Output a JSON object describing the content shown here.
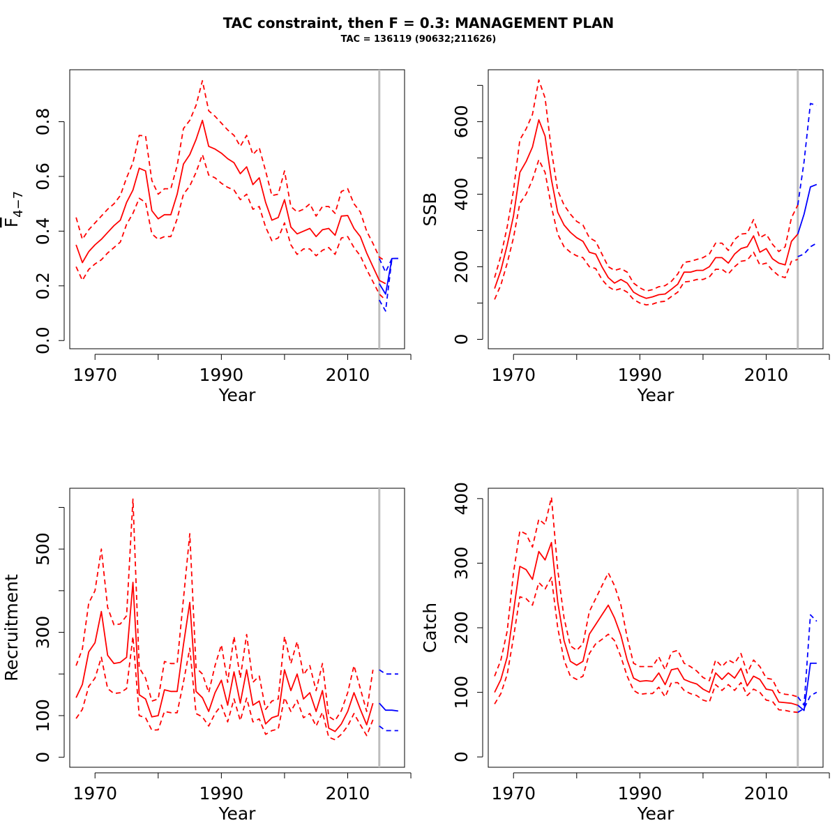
{
  "title": "TAC constraint, then F = 0.3: MANAGEMENT PLAN",
  "subtitle": "TAC = 136119 (90632;211626)",
  "colors": {
    "history": "#ff0000",
    "projection": "#0000ff",
    "divider": "#bebebe"
  },
  "chart_data": [
    {
      "type": "line",
      "ylabel": "F",
      "ylabel_sub": "4−7",
      "ylabel_overline": true,
      "xlabel": "Year",
      "xlim": [
        1966,
        2019
      ],
      "ylim": [
        -0.03,
        0.99
      ],
      "x_ticks": [
        1970,
        1990,
        2010
      ],
      "x_minor_ticks": [
        1980,
        2000,
        2020
      ],
      "y_ticks": [
        0.0,
        0.2,
        0.4,
        0.6,
        0.8
      ],
      "y_tick_labels": [
        "0.0",
        "0.2",
        "0.4",
        "0.6",
        "0.8"
      ],
      "y_minor_ticks": [],
      "divider_year": 2015,
      "series": [
        {
          "role": "historical-estimate",
          "x_start": 1967,
          "values": [
            0.35,
            0.285,
            0.325,
            0.35,
            0.37,
            0.395,
            0.42,
            0.44,
            0.505,
            0.55,
            0.63,
            0.62,
            0.475,
            0.445,
            0.46,
            0.46,
            0.535,
            0.645,
            0.68,
            0.735,
            0.805,
            0.71,
            0.7,
            0.685,
            0.665,
            0.65,
            0.61,
            0.635,
            0.57,
            0.595,
            0.505,
            0.44,
            0.45,
            0.515,
            0.415,
            0.39,
            0.4,
            0.41,
            0.38,
            0.405,
            0.41,
            0.385,
            0.455,
            0.457,
            0.41,
            0.38,
            0.32,
            0.27,
            0.22,
            0.208
          ]
        },
        {
          "role": "historical-upper",
          "x_start": 1967,
          "values": [
            0.45,
            0.37,
            0.405,
            0.43,
            0.455,
            0.48,
            0.5,
            0.53,
            0.595,
            0.65,
            0.75,
            0.748,
            0.585,
            0.535,
            0.555,
            0.555,
            0.64,
            0.775,
            0.805,
            0.86,
            0.95,
            0.84,
            0.82,
            0.795,
            0.77,
            0.75,
            0.71,
            0.75,
            0.68,
            0.705,
            0.62,
            0.53,
            0.535,
            0.62,
            0.49,
            0.47,
            0.48,
            0.5,
            0.455,
            0.49,
            0.49,
            0.465,
            0.545,
            0.555,
            0.5,
            0.47,
            0.4,
            0.355,
            0.305,
            0.29
          ]
        },
        {
          "role": "historical-lower",
          "x_start": 1967,
          "values": [
            0.27,
            0.22,
            0.26,
            0.28,
            0.295,
            0.32,
            0.34,
            0.36,
            0.425,
            0.465,
            0.52,
            0.505,
            0.39,
            0.37,
            0.38,
            0.38,
            0.445,
            0.535,
            0.565,
            0.615,
            0.68,
            0.605,
            0.595,
            0.575,
            0.56,
            0.55,
            0.515,
            0.535,
            0.48,
            0.49,
            0.415,
            0.365,
            0.375,
            0.43,
            0.35,
            0.315,
            0.335,
            0.335,
            0.31,
            0.33,
            0.34,
            0.315,
            0.375,
            0.38,
            0.34,
            0.31,
            0.26,
            0.215,
            0.17,
            0.148
          ]
        },
        {
          "role": "projection-estimate",
          "x_start": 2015,
          "values": [
            0.208,
            0.17,
            0.3,
            0.3
          ]
        },
        {
          "role": "projection-upper",
          "x_start": 2015,
          "values": [
            0.3,
            0.25,
            0.3,
            0.3
          ]
        },
        {
          "role": "projection-lower",
          "x_start": 2015,
          "values": [
            0.148,
            0.108,
            0.3,
            0.3
          ]
        }
      ]
    },
    {
      "type": "line",
      "ylabel": "SSB",
      "xlabel": "Year",
      "xlim": [
        1966,
        2019
      ],
      "ylim": [
        -26,
        743
      ],
      "x_ticks": [
        1970,
        1990,
        2010
      ],
      "x_minor_ticks": [
        1980,
        2000,
        2020
      ],
      "y_ticks": [
        0,
        200,
        400,
        600
      ],
      "y_tick_labels": [
        "0",
        "200",
        "400",
        "600"
      ],
      "y_minor_ticks": [
        100,
        300,
        500,
        700
      ],
      "divider_year": 2015,
      "series": [
        {
          "role": "historical-estimate",
          "x_start": 1967,
          "values": [
            140,
            190,
            260,
            340,
            460,
            490,
            530,
            605,
            560,
            440,
            350,
            315,
            295,
            280,
            270,
            240,
            235,
            200,
            170,
            155,
            165,
            155,
            130,
            120,
            113,
            117,
            123,
            125,
            138,
            152,
            185,
            185,
            190,
            190,
            200,
            225,
            225,
            210,
            235,
            250,
            255,
            285,
            240,
            250,
            222,
            210,
            205,
            270,
            290
          ]
        },
        {
          "role": "historical-upper",
          "x_start": 1967,
          "values": [
            170,
            230,
            310,
            410,
            550,
            580,
            620,
            715,
            665,
            520,
            410,
            370,
            345,
            325,
            315,
            280,
            270,
            235,
            200,
            190,
            195,
            185,
            155,
            142,
            133,
            137,
            145,
            148,
            160,
            180,
            212,
            215,
            220,
            225,
            235,
            265,
            265,
            245,
            275,
            290,
            292,
            330,
            280,
            290,
            262,
            242,
            255,
            335,
            370
          ]
        },
        {
          "role": "historical-lower",
          "x_start": 1967,
          "values": [
            110,
            150,
            210,
            280,
            375,
            400,
            440,
            495,
            460,
            365,
            290,
            255,
            240,
            230,
            225,
            200,
            195,
            165,
            145,
            135,
            140,
            130,
            110,
            100,
            95,
            97,
            103,
            105,
            118,
            130,
            158,
            160,
            165,
            165,
            172,
            193,
            193,
            180,
            200,
            215,
            218,
            240,
            205,
            210,
            190,
            175,
            170,
            215,
            220
          ]
        },
        {
          "role": "projection-estimate",
          "x_start": 2015,
          "values": [
            290,
            345,
            420,
            427
          ]
        },
        {
          "role": "projection-upper",
          "x_start": 2015,
          "values": [
            370,
            490,
            650,
            645
          ]
        },
        {
          "role": "projection-lower",
          "x_start": 2015,
          "values": [
            228,
            235,
            255,
            265
          ]
        }
      ]
    },
    {
      "type": "line",
      "ylabel": "Recruitment",
      "xlabel": "Year",
      "xlim": [
        1966,
        2019
      ],
      "ylim": [
        -24,
        646
      ],
      "x_ticks": [
        1970,
        1990,
        2010
      ],
      "x_minor_ticks": [
        1980,
        2000,
        2020
      ],
      "y_ticks": [
        0,
        100,
        300,
        500
      ],
      "y_tick_labels": [
        "0",
        "100",
        "300",
        "500"
      ],
      "y_minor_ticks": [
        200,
        400,
        600
      ],
      "divider_year": 2015,
      "series": [
        {
          "role": "historical-estimate",
          "x_start": 1967,
          "values": [
            143,
            175,
            253,
            275,
            350,
            245,
            225,
            228,
            240,
            420,
            150,
            140,
            97,
            100,
            162,
            158,
            158,
            270,
            372,
            158,
            143,
            110,
            155,
            185,
            125,
            205,
            130,
            210,
            125,
            135,
            80,
            95,
            100,
            210,
            160,
            200,
            140,
            155,
            110,
            160,
            70,
            62,
            80,
            110,
            155,
            115,
            78,
            130
          ]
        },
        {
          "role": "historical-upper",
          "x_start": 1967,
          "values": [
            220,
            260,
            370,
            400,
            500,
            360,
            318,
            320,
            340,
            620,
            215,
            190,
            135,
            140,
            230,
            225,
            225,
            380,
            537,
            215,
            200,
            155,
            220,
            270,
            180,
            290,
            190,
            295,
            180,
            195,
            115,
            135,
            140,
            290,
            225,
            278,
            198,
            220,
            160,
            225,
            98,
            88,
            112,
            155,
            220,
            165,
            110,
            210
          ]
        },
        {
          "role": "historical-lower",
          "x_start": 1967,
          "values": [
            93,
            115,
            170,
            190,
            240,
            165,
            153,
            155,
            165,
            290,
            100,
            95,
            65,
            66,
            110,
            107,
            107,
            180,
            262,
            105,
            97,
            75,
            105,
            125,
            85,
            140,
            88,
            142,
            85,
            92,
            55,
            64,
            68,
            143,
            110,
            137,
            95,
            105,
            75,
            108,
            48,
            42,
            55,
            75,
            105,
            78,
            52,
            90
          ]
        },
        {
          "role": "projection-estimate",
          "x_start": 2015,
          "values": [
            130,
            113,
            113,
            111
          ]
        },
        {
          "role": "projection-upper",
          "x_start": 2015,
          "values": [
            210,
            200,
            200,
            200
          ]
        },
        {
          "role": "projection-lower",
          "x_start": 2015,
          "values": [
            75,
            64,
            64,
            64
          ]
        }
      ]
    },
    {
      "type": "line",
      "ylabel": "Catch",
      "xlabel": "Year",
      "xlim": [
        1966,
        2019
      ],
      "ylim": [
        -16,
        416
      ],
      "x_ticks": [
        1970,
        1990,
        2010
      ],
      "x_minor_ticks": [
        1980,
        2000,
        2020
      ],
      "y_ticks": [
        0,
        100,
        200,
        300,
        400
      ],
      "y_tick_labels": [
        "0",
        "100",
        "200",
        "300",
        "400"
      ],
      "y_minor_ticks": [],
      "divider_year": 2015,
      "series": [
        {
          "role": "historical-estimate",
          "x_start": 1967,
          "values": [
            100,
            120,
            155,
            225,
            295,
            290,
            275,
            318,
            305,
            332,
            240,
            180,
            148,
            142,
            148,
            190,
            205,
            220,
            235,
            215,
            188,
            150,
            122,
            117,
            118,
            117,
            130,
            112,
            135,
            137,
            120,
            116,
            113,
            105,
            100,
            130,
            120,
            130,
            122,
            137,
            110,
            125,
            120,
            105,
            103,
            85,
            84,
            83,
            80
          ]
        },
        {
          "role": "historical-upper",
          "x_start": 1967,
          "values": [
            125,
            150,
            195,
            285,
            350,
            345,
            325,
            368,
            360,
            402,
            290,
            215,
            172,
            165,
            175,
            225,
            245,
            265,
            285,
            265,
            235,
            185,
            145,
            140,
            140,
            140,
            155,
            135,
            162,
            165,
            145,
            140,
            133,
            123,
            118,
            150,
            140,
            150,
            145,
            160,
            130,
            150,
            140,
            122,
            120,
            100,
            97,
            96,
            93
          ]
        },
        {
          "role": "historical-lower",
          "x_start": 1967,
          "values": [
            82,
            98,
            128,
            185,
            248,
            245,
            235,
            270,
            260,
            278,
            200,
            150,
            125,
            120,
            125,
            160,
            175,
            182,
            190,
            180,
            155,
            125,
            103,
            97,
            98,
            98,
            108,
            93,
            115,
            115,
            103,
            98,
            95,
            88,
            85,
            112,
            103,
            112,
            103,
            115,
            95,
            105,
            100,
            88,
            86,
            73,
            72,
            70,
            69
          ]
        },
        {
          "role": "projection-estimate",
          "x_start": 2015,
          "values": [
            80,
            72,
            145,
            145
          ]
        },
        {
          "role": "projection-upper",
          "x_start": 2015,
          "values": [
            93,
            80,
            220,
            210
          ]
        },
        {
          "role": "projection-lower",
          "x_start": 2015,
          "values": [
            69,
            75,
            95,
            100
          ]
        }
      ]
    }
  ]
}
